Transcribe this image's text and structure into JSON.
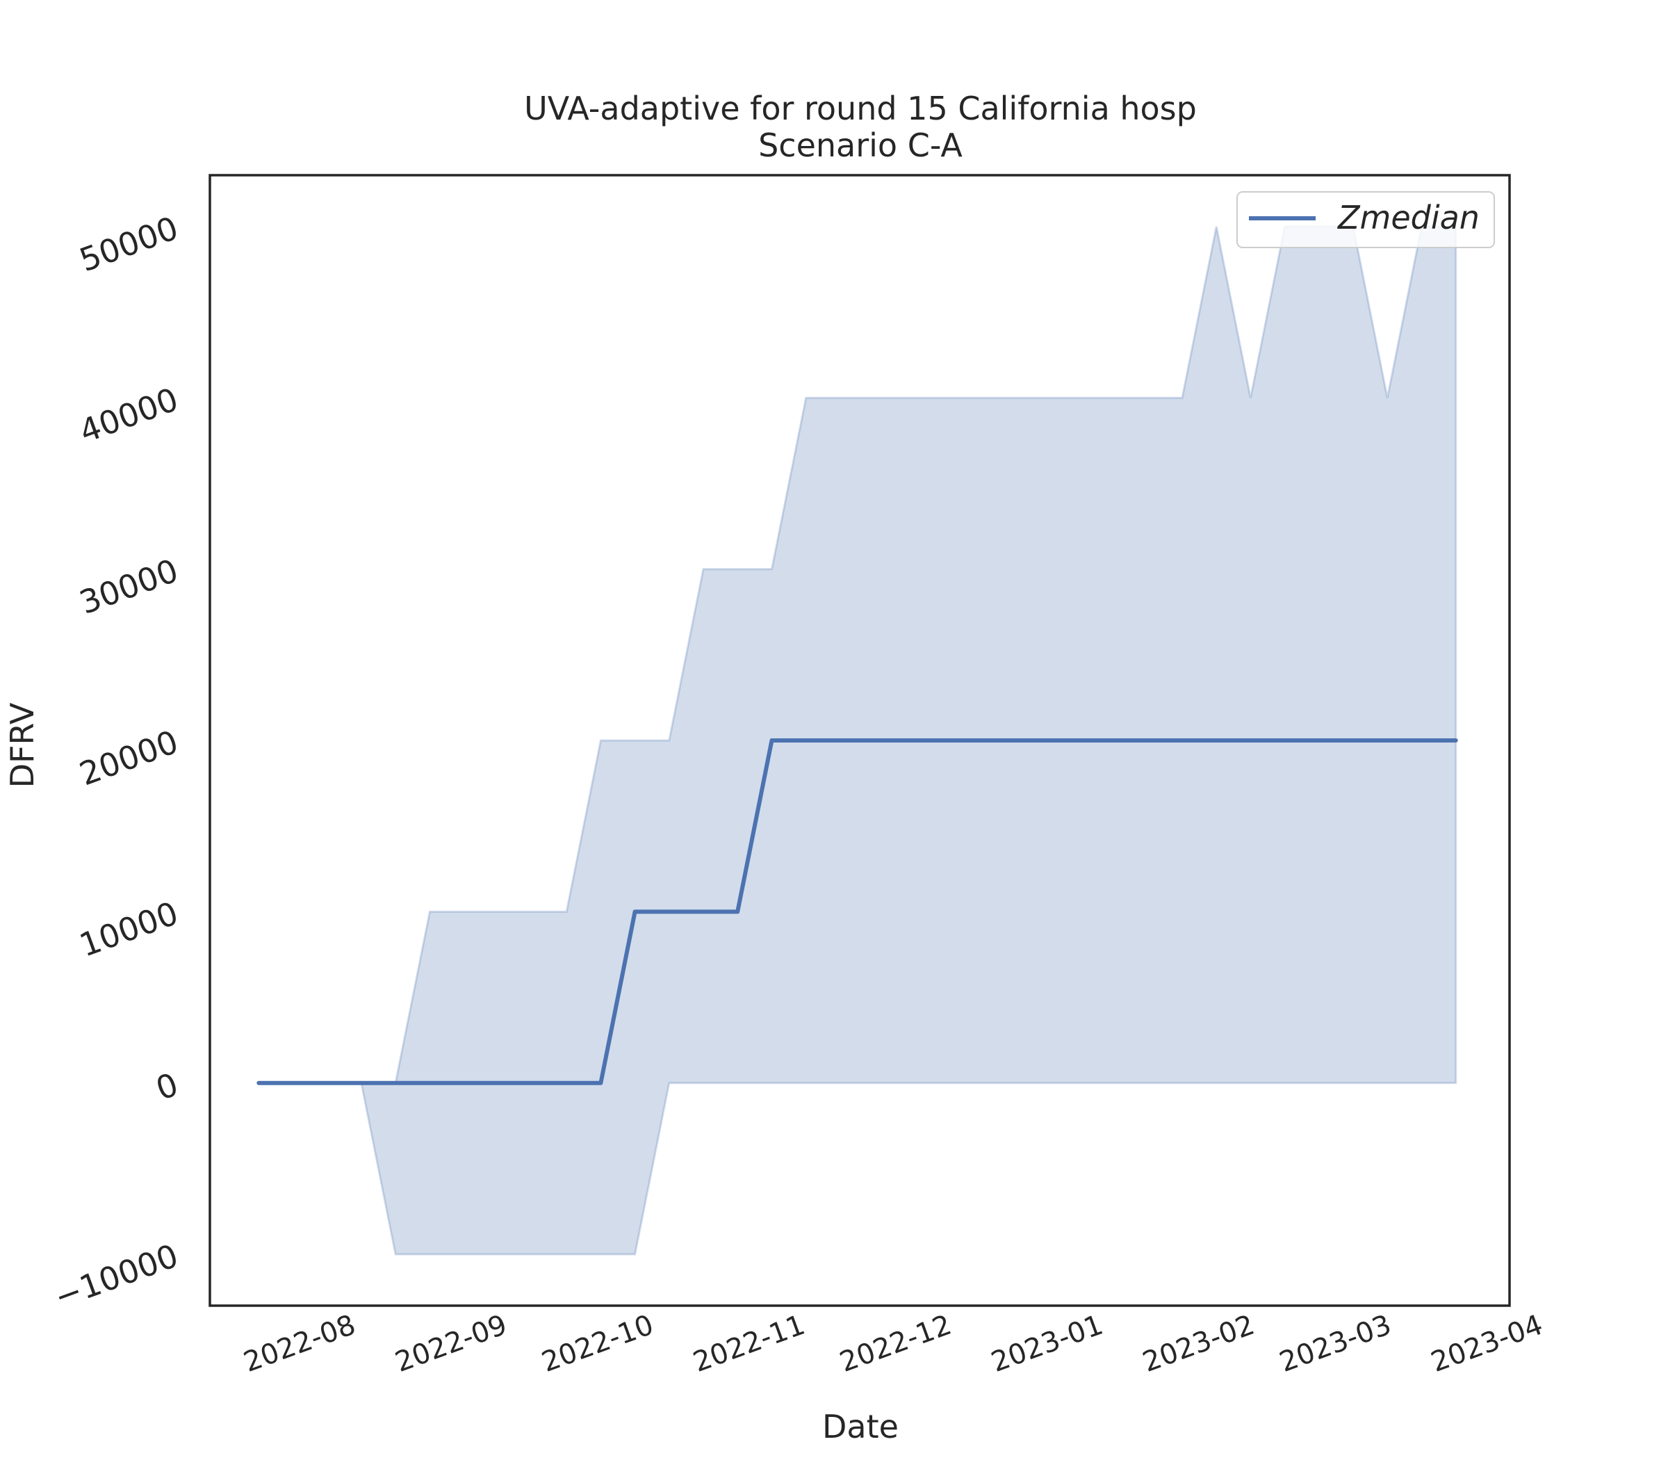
{
  "chart_data": {
    "type": "line",
    "title": "UVA-adaptive for round 15 California hosp",
    "subtitle": "Scenario C-A",
    "xlabel": "Date",
    "ylabel": "DFRV",
    "xlim": [
      "2022-07-13",
      "2023-04-05"
    ],
    "ylim": [
      -13000,
      53000
    ],
    "x_ticks": [
      "2022-08",
      "2022-09",
      "2022-10",
      "2022-11",
      "2022-12",
      "2023-01",
      "2023-02",
      "2023-03",
      "2023-04"
    ],
    "y_ticks": [
      -10000,
      0,
      10000,
      20000,
      30000,
      40000,
      50000
    ],
    "y_tick_labels": [
      "−10000",
      "0",
      "10000",
      "20000",
      "30000",
      "40000",
      "50000"
    ],
    "grid": false,
    "legend_position": "top-right",
    "colors": {
      "line": "#4c72b0",
      "band": "#4c72b0",
      "axes": "#262626"
    },
    "series": [
      {
        "name": "Zmedian",
        "x": [
          "2022-07-23",
          "2022-07-30",
          "2022-08-06",
          "2022-08-13",
          "2022-08-20",
          "2022-08-27",
          "2022-09-03",
          "2022-09-10",
          "2022-09-17",
          "2022-09-24",
          "2022-10-01",
          "2022-10-08",
          "2022-10-15",
          "2022-10-22",
          "2022-10-29",
          "2022-11-05",
          "2022-11-12",
          "2022-11-19",
          "2022-11-26",
          "2022-12-03",
          "2022-12-10",
          "2022-12-17",
          "2022-12-24",
          "2022-12-31",
          "2023-01-07",
          "2023-01-14",
          "2023-01-21",
          "2023-01-28",
          "2023-02-04",
          "2023-02-11",
          "2023-02-18",
          "2023-02-25",
          "2023-03-04",
          "2023-03-11",
          "2023-03-18",
          "2023-03-25"
        ],
        "values": [
          0,
          0,
          0,
          0,
          0,
          0,
          0,
          0,
          0,
          0,
          0,
          10000,
          10000,
          10000,
          10000,
          20000,
          20000,
          20000,
          20000,
          20000,
          20000,
          20000,
          20000,
          20000,
          20000,
          20000,
          20000,
          20000,
          20000,
          20000,
          20000,
          20000,
          20000,
          20000,
          20000,
          20000
        ],
        "lower": [
          0,
          0,
          0,
          0,
          -10000,
          -10000,
          -10000,
          -10000,
          -10000,
          -10000,
          -10000,
          -10000,
          0,
          0,
          0,
          0,
          0,
          0,
          0,
          0,
          0,
          0,
          0,
          0,
          0,
          0,
          0,
          0,
          0,
          0,
          0,
          0,
          0,
          0,
          0,
          0
        ],
        "upper": [
          0,
          0,
          0,
          0,
          0,
          10000,
          10000,
          10000,
          10000,
          10000,
          20000,
          20000,
          20000,
          30000,
          30000,
          30000,
          40000,
          40000,
          40000,
          40000,
          40000,
          40000,
          40000,
          40000,
          40000,
          40000,
          40000,
          40000,
          50000,
          40000,
          50000,
          50000,
          50000,
          40000,
          50000,
          50000
        ]
      }
    ]
  }
}
